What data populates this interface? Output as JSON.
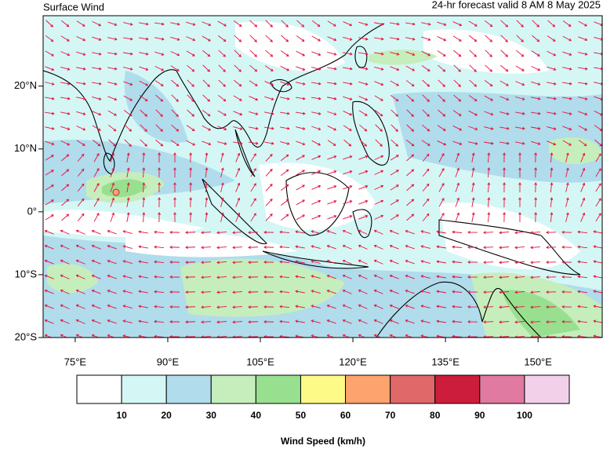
{
  "header": {
    "title": "Surface Wind",
    "subtitle": "24-hr forecast valid 8 AM 8 May 2025"
  },
  "map": {
    "lon_range": [
      69.8,
      160.4
    ],
    "lat_range": [
      -20,
      31.2
    ],
    "lon_ticks": [
      {
        "value": 75,
        "label": "75°E"
      },
      {
        "value": 90,
        "label": "90°E"
      },
      {
        "value": 105,
        "label": "105°E"
      },
      {
        "value": 120,
        "label": "120°E"
      },
      {
        "value": 135,
        "label": "135°E"
      },
      {
        "value": 150,
        "label": "150°E"
      }
    ],
    "lat_ticks": [
      {
        "value": 20,
        "label": "20°N"
      },
      {
        "value": 10,
        "label": "10°N"
      },
      {
        "value": 0,
        "label": "0°"
      },
      {
        "value": -10,
        "label": "10°S"
      },
      {
        "value": -20,
        "label": "20°S"
      }
    ],
    "arrow_color": "#e8103c"
  },
  "colorbar": {
    "title": "Wind Speed (km/h)",
    "colors": [
      "#ffffff",
      "#d4f7f5",
      "#b0dcec",
      "#c5eebc",
      "#98e08f",
      "#fefa88",
      "#fda36e",
      "#e06868",
      "#cc1e3c",
      "#e07aa0",
      "#f2d0ea"
    ],
    "levels": [
      10,
      20,
      30,
      40,
      50,
      60,
      70,
      80,
      90,
      100
    ]
  }
}
